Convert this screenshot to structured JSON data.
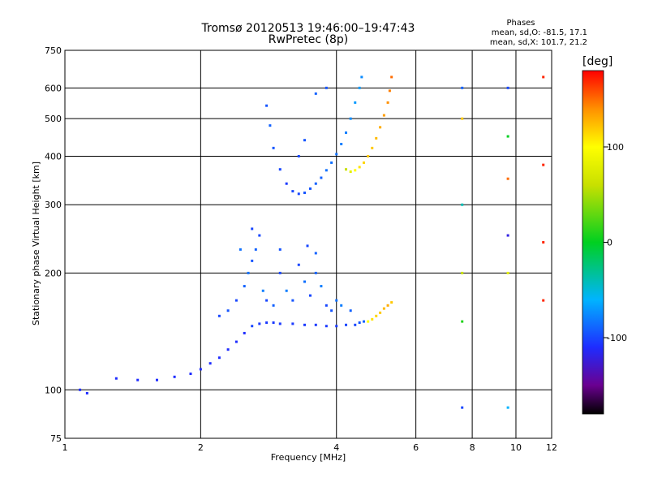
{
  "header": {
    "title_line1": "Tromsø 20120513 19:46:00–19:47:43",
    "title_line2": "RwPretec (8p)"
  },
  "phases_box": {
    "heading": "Phases",
    "line1": "mean, sd,O: -81.5, 17.1",
    "line2": "mean, sd,X: 101.7, 21.2"
  },
  "colorbar": {
    "unit_label": "[deg]",
    "ticks": [
      "100",
      "0",
      "-100"
    ],
    "tick_values": [
      100,
      0,
      -100
    ],
    "range": [
      -180,
      180
    ],
    "colormap": "rainbow (black-purple-blue-cyan-green-yellow-orange-red)"
  },
  "chart_data": {
    "type": "scatter",
    "xlabel": "Frequency [MHz]",
    "ylabel": "Stationary phase Virtual Height [km]",
    "x_scale": "log",
    "y_scale": "log",
    "xlim": [
      1,
      12
    ],
    "ylim": [
      75,
      750
    ],
    "x_ticks": [
      1,
      2,
      4,
      6,
      8,
      10,
      12
    ],
    "x_tick_labels": [
      "1",
      "2",
      "4",
      "6",
      "8",
      "10",
      "12"
    ],
    "y_ticks": [
      75,
      100,
      200,
      300,
      400,
      500,
      600,
      750
    ],
    "y_tick_labels": [
      "75",
      "100",
      "200",
      "300",
      "400",
      "500",
      "600",
      "750"
    ],
    "grid": true,
    "series": [
      {
        "description": "low-altitude O-mode trace (phase ≈ -100)",
        "points": [
          [
            1.08,
            100,
            -110
          ],
          [
            1.12,
            98,
            -110
          ],
          [
            1.3,
            107,
            -110
          ],
          [
            1.45,
            106,
            -110
          ],
          [
            1.6,
            106,
            -110
          ],
          [
            1.75,
            108,
            -110
          ],
          [
            1.9,
            110,
            -110
          ],
          [
            2.0,
            113,
            -110
          ],
          [
            2.1,
            117,
            -110
          ],
          [
            2.2,
            121,
            -110
          ],
          [
            2.3,
            127,
            -110
          ],
          [
            2.4,
            133,
            -110
          ],
          [
            2.5,
            140,
            -110
          ],
          [
            2.6,
            146,
            -100
          ],
          [
            2.7,
            148,
            -105
          ],
          [
            2.8,
            149,
            -105
          ],
          [
            2.9,
            149,
            -105
          ],
          [
            3.0,
            148,
            -105
          ],
          [
            3.2,
            148,
            -105
          ],
          [
            3.4,
            147,
            -105
          ],
          [
            3.6,
            147,
            -105
          ],
          [
            3.8,
            146,
            -105
          ],
          [
            4.0,
            146,
            -105
          ],
          [
            4.2,
            147,
            -100
          ],
          [
            4.4,
            147,
            -100
          ],
          [
            4.5,
            149,
            -95
          ],
          [
            4.6,
            150,
            -90
          ]
        ]
      },
      {
        "description": "E/F1 scatter cloud 2.0–4.4 MHz (phase ≈ -100 to -80)",
        "points": [
          [
            2.2,
            155,
            -100
          ],
          [
            2.3,
            160,
            -95
          ],
          [
            2.4,
            170,
            -100
          ],
          [
            2.5,
            185,
            -90
          ],
          [
            2.55,
            200,
            -85
          ],
          [
            2.6,
            215,
            -95
          ],
          [
            2.65,
            230,
            -90
          ],
          [
            2.7,
            250,
            -100
          ],
          [
            2.75,
            180,
            -80
          ],
          [
            2.8,
            170,
            -100
          ],
          [
            2.9,
            165,
            -90
          ],
          [
            3.0,
            200,
            -100
          ],
          [
            3.1,
            180,
            -80
          ],
          [
            3.2,
            170,
            -95
          ],
          [
            3.3,
            210,
            -100
          ],
          [
            3.4,
            190,
            -85
          ],
          [
            3.5,
            175,
            -100
          ],
          [
            3.6,
            200,
            -90
          ],
          [
            3.7,
            185,
            -80
          ],
          [
            3.8,
            165,
            -100
          ],
          [
            3.9,
            160,
            -95
          ],
          [
            4.0,
            170,
            -85
          ],
          [
            4.1,
            165,
            -80
          ],
          [
            4.3,
            160,
            -90
          ],
          [
            2.45,
            230,
            -85
          ],
          [
            2.6,
            260,
            -100
          ],
          [
            3.0,
            230,
            -95
          ],
          [
            3.45,
            235,
            -100
          ],
          [
            3.6,
            225,
            -90
          ]
        ]
      },
      {
        "description": "F2 O-mode trace 2.8–4.6 MHz (phase ≈ -90)",
        "points": [
          [
            2.8,
            540,
            -95
          ],
          [
            2.85,
            480,
            -90
          ],
          [
            2.9,
            420,
            -95
          ],
          [
            3.0,
            370,
            -100
          ],
          [
            3.1,
            340,
            -105
          ],
          [
            3.2,
            325,
            -100
          ],
          [
            3.3,
            320,
            -100
          ],
          [
            3.4,
            322,
            -95
          ],
          [
            3.5,
            330,
            -95
          ],
          [
            3.6,
            340,
            -90
          ],
          [
            3.7,
            352,
            -90
          ],
          [
            3.8,
            368,
            -85
          ],
          [
            3.9,
            385,
            -85
          ],
          [
            4.0,
            405,
            -85
          ],
          [
            4.1,
            430,
            -80
          ],
          [
            4.2,
            460,
            -80
          ],
          [
            4.3,
            500,
            -75
          ],
          [
            4.4,
            550,
            -70
          ],
          [
            4.5,
            600,
            -70
          ],
          [
            4.55,
            640,
            -75
          ],
          [
            3.3,
            400,
            -100
          ],
          [
            3.4,
            440,
            -95
          ],
          [
            3.6,
            580,
            -90
          ],
          [
            3.8,
            600,
            -95
          ]
        ]
      },
      {
        "description": "F2 X-mode trace 4.2–5.4 MHz (phase ≈ +100)",
        "points": [
          [
            4.2,
            370,
            60
          ],
          [
            4.3,
            365,
            80
          ],
          [
            4.4,
            368,
            100
          ],
          [
            4.5,
            375,
            110
          ],
          [
            4.6,
            385,
            115
          ],
          [
            4.7,
            400,
            120
          ],
          [
            4.8,
            420,
            120
          ],
          [
            4.9,
            445,
            125
          ],
          [
            5.0,
            475,
            130
          ],
          [
            5.1,
            510,
            135
          ],
          [
            5.2,
            550,
            140
          ],
          [
            5.25,
            590,
            145
          ],
          [
            5.3,
            640,
            150
          ],
          [
            4.7,
            150,
            100
          ],
          [
            4.8,
            152,
            110
          ],
          [
            4.9,
            155,
            115
          ],
          [
            5.0,
            158,
            120
          ],
          [
            5.1,
            162,
            125
          ],
          [
            5.2,
            165,
            130
          ],
          [
            5.3,
            168,
            120
          ]
        ]
      },
      {
        "description": "vertical interference stripes at ~7.6, 9.6, 11.5 MHz (random phase)",
        "points": [
          [
            7.6,
            90,
            -100
          ],
          [
            7.6,
            150,
            10
          ],
          [
            7.6,
            200,
            60
          ],
          [
            7.6,
            300,
            -40
          ],
          [
            7.6,
            500,
            120
          ],
          [
            7.6,
            600,
            -90
          ],
          [
            9.6,
            90,
            -60
          ],
          [
            9.6,
            200,
            80
          ],
          [
            9.6,
            250,
            -120
          ],
          [
            9.6,
            350,
            150
          ],
          [
            9.6,
            450,
            0
          ],
          [
            9.6,
            600,
            -100
          ],
          [
            11.5,
            170,
            170
          ],
          [
            11.5,
            240,
            170
          ],
          [
            11.5,
            380,
            170
          ],
          [
            11.5,
            640,
            170
          ]
        ]
      }
    ]
  }
}
